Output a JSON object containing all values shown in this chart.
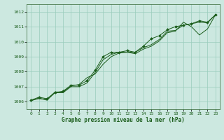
{
  "title": "Graphe pression niveau de la mer (hPa)",
  "background_color": "#cce8e0",
  "grid_color": "#99ccbb",
  "line_color": "#1a5c1a",
  "marker_color": "#1a5c1a",
  "xlim": [
    -0.5,
    23.5
  ],
  "ylim": [
    1005.5,
    1012.5
  ],
  "xticks": [
    0,
    1,
    2,
    3,
    4,
    5,
    6,
    7,
    8,
    9,
    10,
    11,
    12,
    13,
    14,
    15,
    16,
    17,
    18,
    19,
    20,
    21,
    22,
    23
  ],
  "yticks": [
    1006,
    1007,
    1008,
    1009,
    1010,
    1011,
    1012
  ],
  "series": [
    [
      1006.1,
      1006.3,
      1006.2,
      1006.6,
      1006.7,
      1007.1,
      1007.1,
      1007.4,
      1008.1,
      1009.0,
      1009.3,
      1009.3,
      1009.4,
      1009.3,
      1009.7,
      1010.2,
      1010.4,
      1010.8,
      1011.0,
      1011.1,
      1011.2,
      1011.4,
      1011.3,
      1011.8
    ],
    [
      1006.1,
      1006.2,
      1006.15,
      1006.65,
      1006.65,
      1007.05,
      1007.15,
      1007.6,
      1007.85,
      1008.5,
      1009.0,
      1009.25,
      1009.3,
      1009.3,
      1009.6,
      1009.8,
      1010.15,
      1010.7,
      1010.75,
      1011.1,
      1011.2,
      1011.3,
      1011.25,
      1011.8
    ],
    [
      1006.05,
      1006.25,
      1006.1,
      1006.6,
      1006.6,
      1007.0,
      1007.0,
      1007.25,
      1007.95,
      1008.8,
      1009.15,
      1009.3,
      1009.3,
      1009.2,
      1009.5,
      1009.7,
      1010.05,
      1010.6,
      1010.7,
      1011.3,
      1011.0,
      1010.45,
      1010.85,
      1011.8
    ]
  ]
}
